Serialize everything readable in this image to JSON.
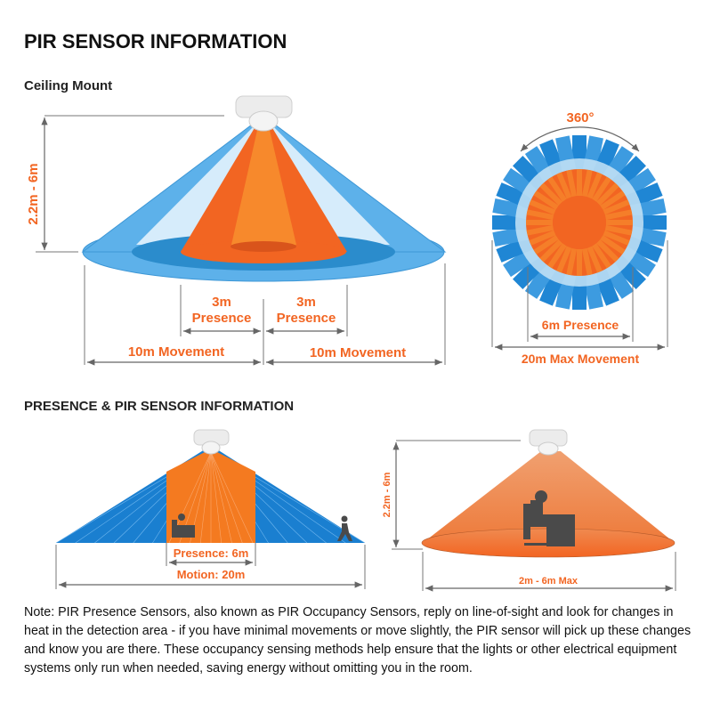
{
  "title": "PIR SENSOR INFORMATION",
  "ceiling_mount": {
    "heading": "Ceiling Mount",
    "height_label": "2.2m - 6m",
    "presence_left": {
      "distance": "3m",
      "label": "Presence"
    },
    "presence_right": {
      "distance": "3m",
      "label": "Presence"
    },
    "movement_left": "10m Movement",
    "movement_right": "10m Movement"
  },
  "top_view": {
    "angle_label": "360°",
    "presence_label": "6m Presence",
    "movement_label": "20m Max Movement"
  },
  "presence_section": {
    "heading": "PRESENCE & PIR SENSOR INFORMATION",
    "presence_label": "Presence: 6m",
    "motion_label": "Motion: 20m",
    "height_label": "2.2m - 6m",
    "width_label": "2m - 6m Max"
  },
  "note": "Note:  PIR Presence Sensors, also known as PIR Occupancy Sensors, reply on line-of-sight and look for changes in heat in the detection area - if you have minimal movements or move slightly, the PIR sensor will pick up these changes and know you are there. These occupancy sensing methods help ensure that the lights or other electrical equipment systems only run when needed, saving energy without omitting you in the room.",
  "colors": {
    "orange": "#f26522",
    "light_orange": "#f7892c",
    "blue": "#5aaee8",
    "dark_blue": "#2a8bc9",
    "light_blue": "#cfe8f8",
    "grey": "#555555"
  }
}
